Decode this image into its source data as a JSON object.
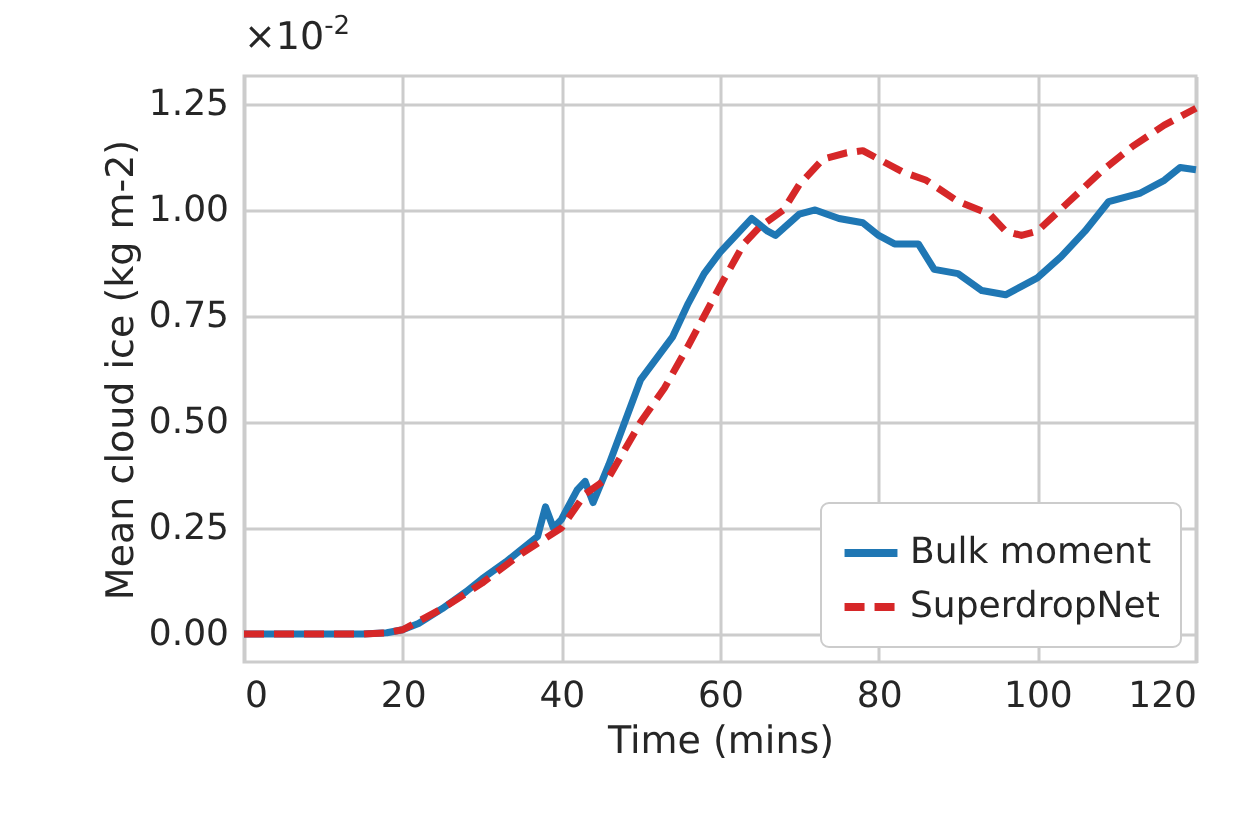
{
  "chart_data": {
    "type": "line",
    "xlabel": "Time (mins)",
    "ylabel": "Mean cloud ice (kg m-2)",
    "annotations": [
      "×10$^{-2}$"
    ],
    "xlim": [
      0,
      120
    ],
    "xticks": [
      0,
      20,
      40,
      60,
      80,
      100,
      120
    ],
    "ylim": [
      -0.066,
      1.316
    ],
    "yticks": [
      {
        "value": 0,
        "label": "0.00"
      },
      0.25,
      {
        "value": 0.5,
        "label": "0.50"
      },
      0.75,
      {
        "value": 1,
        "label": "1.00"
      },
      1.25
    ],
    "grid": true,
    "legend": "bottom right",
    "series": [
      {
        "name": "Bulk moment",
        "color": "#1f77b4",
        "line_style": "solid",
        "x": [
          0,
          15,
          18,
          20,
          22,
          25,
          28,
          30,
          33,
          35,
          37,
          38,
          39,
          40,
          42,
          43,
          44,
          46,
          48,
          50,
          52,
          54,
          56,
          58,
          60,
          62,
          64,
          66,
          67,
          70,
          72,
          75,
          78,
          80,
          82,
          85,
          87,
          90,
          93,
          96,
          98,
          100,
          103,
          106,
          109,
          113,
          116,
          118,
          120
        ],
        "values": [
          0,
          0,
          0.003,
          0.01,
          0.025,
          0.06,
          0.1,
          0.13,
          0.17,
          0.2,
          0.23,
          0.3,
          0.25,
          0.27,
          0.34,
          0.36,
          0.31,
          0.4,
          0.5,
          0.6,
          0.65,
          0.7,
          0.78,
          0.85,
          0.9,
          0.94,
          0.98,
          0.95,
          0.94,
          0.99,
          1.0,
          0.98,
          0.97,
          0.94,
          0.92,
          0.92,
          0.86,
          0.85,
          0.81,
          0.8,
          0.82,
          0.84,
          0.89,
          0.95,
          1.02,
          1.04,
          1.07,
          1.1,
          1.095
        ]
      },
      {
        "name": "SuperdropNet",
        "color": "#d62728",
        "line_style": "dashed",
        "x": [
          0,
          15,
          18,
          20,
          25,
          30,
          35,
          40,
          43,
          46,
          50,
          53,
          56,
          60,
          63,
          65,
          68,
          70,
          73,
          76,
          78,
          80,
          83,
          86,
          90,
          94,
          96,
          98,
          100,
          104,
          108,
          112,
          116,
          120
        ],
        "values": [
          0,
          0,
          0.003,
          0.01,
          0.06,
          0.12,
          0.19,
          0.25,
          0.33,
          0.37,
          0.5,
          0.58,
          0.68,
          0.82,
          0.92,
          0.96,
          1.0,
          1.06,
          1.12,
          1.135,
          1.14,
          1.12,
          1.09,
          1.07,
          1.02,
          0.99,
          0.95,
          0.94,
          0.95,
          1.02,
          1.09,
          1.15,
          1.2,
          1.24
        ]
      }
    ]
  }
}
